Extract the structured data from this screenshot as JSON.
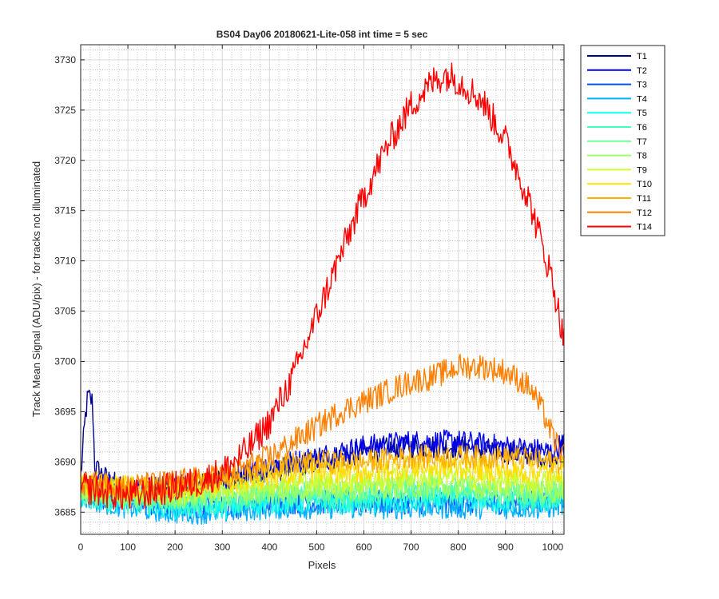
{
  "chart_data": {
    "type": "line",
    "title": "BS04 Day06 20180621-Lite-058 int time = 5 sec",
    "xlabel": "Pixels",
    "ylabel": "Track Mean Signal (ADU/pix) - for tracks not illuminated",
    "xlim": [
      0,
      1024
    ],
    "ylim": [
      3682.8,
      3731.5
    ],
    "xticks": [
      "0",
      "100",
      "200",
      "300",
      "400",
      "500",
      "600",
      "700",
      "800",
      "900",
      "1000"
    ],
    "yticks": [
      "3685",
      "3690",
      "3695",
      "3700",
      "3705",
      "3710",
      "3715",
      "3720",
      "3725",
      "3730"
    ],
    "grid": true,
    "minor_grid": true,
    "legend_position": "outside-top-right",
    "series": [
      {
        "name": "T1",
        "color": "#00008f",
        "x": [
          0,
          10,
          15,
          25,
          30,
          50,
          100,
          200,
          300,
          400,
          500,
          600,
          700,
          800,
          900,
          1000,
          1024
        ],
        "y": [
          3688.5,
          3694.5,
          3696.5,
          3696.0,
          3689.5,
          3688.5,
          3687.0,
          3687.5,
          3688.0,
          3689.0,
          3690.0,
          3691.0,
          3691.5,
          3691.5,
          3691.0,
          3690.5,
          3691.5
        ]
      },
      {
        "name": "T2",
        "color": "#0000ee",
        "x": [
          0,
          50,
          100,
          200,
          300,
          400,
          500,
          600,
          700,
          800,
          900,
          1000,
          1024
        ],
        "y": [
          3688.0,
          3688.0,
          3687.0,
          3687.5,
          3688.0,
          3689.5,
          3690.5,
          3691.5,
          3692.0,
          3692.0,
          3691.5,
          3691.0,
          3692.0
        ]
      },
      {
        "name": "T3",
        "color": "#0050ff",
        "x": [
          0,
          100,
          200,
          300,
          400,
          500,
          600,
          700,
          800,
          900,
          1000,
          1024
        ],
        "y": [
          3687.0,
          3686.0,
          3685.5,
          3685.5,
          3686.0,
          3686.0,
          3686.0,
          3686.0,
          3686.0,
          3686.0,
          3686.0,
          3686.5
        ]
      },
      {
        "name": "T4",
        "color": "#00afff",
        "x": [
          0,
          100,
          200,
          300,
          400,
          500,
          600,
          700,
          800,
          900,
          1000,
          1024
        ],
        "y": [
          3686.5,
          3685.5,
          3685.0,
          3685.0,
          3685.5,
          3685.5,
          3685.5,
          3685.5,
          3685.5,
          3685.5,
          3685.5,
          3686.0
        ]
      },
      {
        "name": "T5",
        "color": "#10ffef",
        "x": [
          0,
          100,
          200,
          300,
          400,
          500,
          600,
          700,
          800,
          900,
          1000,
          1024
        ],
        "y": [
          3686.5,
          3686.0,
          3685.5,
          3685.5,
          3686.0,
          3686.0,
          3686.0,
          3686.0,
          3686.5,
          3686.0,
          3686.0,
          3686.5
        ]
      },
      {
        "name": "T6",
        "color": "#40ffbf",
        "x": [
          0,
          100,
          200,
          300,
          400,
          500,
          600,
          700,
          800,
          900,
          1000,
          1024
        ],
        "y": [
          3686.5,
          3686.0,
          3686.0,
          3686.0,
          3686.5,
          3686.5,
          3686.5,
          3687.0,
          3687.0,
          3686.5,
          3686.5,
          3687.0
        ]
      },
      {
        "name": "T7",
        "color": "#70ff8f",
        "x": [
          0,
          100,
          200,
          300,
          400,
          500,
          600,
          700,
          800,
          900,
          1000,
          1024
        ],
        "y": [
          3687.0,
          3686.5,
          3686.5,
          3686.5,
          3687.0,
          3687.0,
          3687.0,
          3687.5,
          3687.5,
          3687.0,
          3687.0,
          3687.5
        ]
      },
      {
        "name": "T8",
        "color": "#9fff60",
        "x": [
          0,
          100,
          200,
          300,
          400,
          500,
          600,
          700,
          800,
          900,
          1000,
          1024
        ],
        "y": [
          3687.0,
          3686.5,
          3686.5,
          3687.0,
          3687.0,
          3687.5,
          3687.5,
          3687.5,
          3687.5,
          3687.5,
          3687.0,
          3687.5
        ]
      },
      {
        "name": "T9",
        "color": "#cfff30",
        "x": [
          0,
          100,
          200,
          300,
          400,
          500,
          600,
          700,
          800,
          900,
          1000,
          1024
        ],
        "y": [
          3687.5,
          3687.0,
          3687.0,
          3687.5,
          3688.0,
          3688.0,
          3688.0,
          3688.5,
          3688.5,
          3688.0,
          3688.0,
          3688.5
        ]
      },
      {
        "name": "T10",
        "color": "#ffdf00",
        "x": [
          0,
          100,
          200,
          300,
          400,
          500,
          600,
          700,
          800,
          900,
          1000,
          1024
        ],
        "y": [
          3688.0,
          3687.5,
          3687.5,
          3688.0,
          3688.5,
          3689.0,
          3689.0,
          3689.5,
          3689.5,
          3689.0,
          3689.0,
          3689.5
        ]
      },
      {
        "name": "T11",
        "color": "#ffb000",
        "x": [
          0,
          100,
          200,
          300,
          400,
          500,
          600,
          700,
          800,
          900,
          1000,
          1024
        ],
        "y": [
          3688.0,
          3687.5,
          3687.5,
          3688.5,
          3689.5,
          3690.0,
          3690.0,
          3690.5,
          3690.5,
          3690.5,
          3690.0,
          3690.0
        ]
      },
      {
        "name": "T12",
        "color": "#ff8000",
        "x": [
          0,
          100,
          200,
          300,
          350,
          400,
          450,
          500,
          550,
          600,
          650,
          700,
          750,
          800,
          850,
          900,
          950,
          980,
          1000,
          1024
        ],
        "y": [
          3688.0,
          3687.5,
          3688.0,
          3688.5,
          3689.5,
          3690.5,
          3692.0,
          3693.5,
          3695.0,
          3696.0,
          3697.0,
          3698.0,
          3698.5,
          3699.5,
          3699.5,
          3699.0,
          3697.5,
          3695.0,
          3692.5,
          3690.5
        ]
      },
      {
        "name": "T14",
        "color": "#ff0000",
        "x": [
          0,
          50,
          100,
          150,
          200,
          250,
          300,
          350,
          400,
          450,
          500,
          550,
          600,
          650,
          700,
          750,
          775,
          800,
          850,
          900,
          950,
          1000,
          1024
        ],
        "y": [
          3687.5,
          3687.0,
          3686.5,
          3687.0,
          3687.5,
          3688.0,
          3689.0,
          3691.0,
          3694.0,
          3698.5,
          3704.5,
          3710.5,
          3716.5,
          3721.5,
          3725.5,
          3728.0,
          3728.5,
          3728.0,
          3726.0,
          3722.0,
          3716.0,
          3708.0,
          3702.0
        ]
      }
    ]
  }
}
